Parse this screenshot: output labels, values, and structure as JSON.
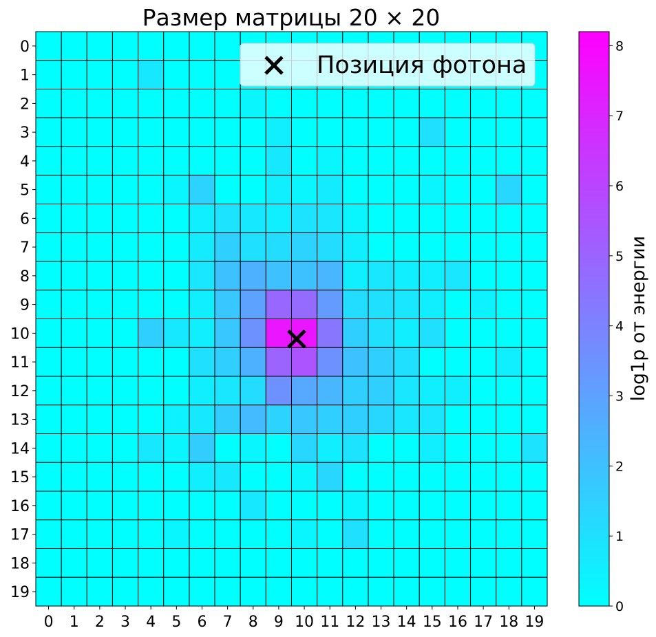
{
  "chart_data": {
    "type": "heatmap",
    "title": "Размер матрицы 20 × 20",
    "xlabel": "",
    "ylabel": "",
    "x_ticks": [
      "0",
      "1",
      "2",
      "3",
      "4",
      "5",
      "6",
      "7",
      "8",
      "9",
      "10",
      "11",
      "12",
      "13",
      "14",
      "15",
      "16",
      "17",
      "18",
      "19"
    ],
    "y_ticks": [
      "0",
      "1",
      "2",
      "3",
      "4",
      "5",
      "6",
      "7",
      "8",
      "9",
      "10",
      "11",
      "12",
      "13",
      "14",
      "15",
      "16",
      "17",
      "18",
      "19"
    ],
    "colormap": "cool",
    "colorbar": {
      "label": "log1p от энергии",
      "range": [
        0,
        8.2
      ],
      "ticks": [
        "0",
        "1",
        "2",
        "3",
        "4",
        "5",
        "6",
        "7",
        "8"
      ]
    },
    "grid": true,
    "legend": {
      "placement": "top-right",
      "label": "Позиция фотона"
    },
    "photon_position": {
      "x": 9.7,
      "y": 10.2
    },
    "colors": {
      "low": "#00ffff",
      "high": "#ff00ff",
      "marker": "#000000"
    },
    "values": [
      [
        0,
        0,
        0,
        0,
        0,
        0,
        0,
        0,
        0,
        0,
        0,
        0,
        0,
        0,
        0,
        0,
        0,
        0,
        0,
        0
      ],
      [
        0,
        0,
        0,
        0,
        0.7,
        0,
        0,
        0,
        0,
        0,
        0,
        0,
        0,
        0,
        0,
        0,
        0,
        0,
        0,
        0
      ],
      [
        0,
        0,
        0,
        0,
        0,
        0,
        0,
        0,
        0.3,
        0,
        0,
        0,
        0,
        0,
        0,
        0,
        0,
        0,
        0,
        0
      ],
      [
        0,
        0,
        0,
        0,
        0,
        0,
        0,
        0,
        0,
        0.5,
        0,
        0,
        0,
        0,
        0,
        1.0,
        0,
        0,
        0,
        0
      ],
      [
        0,
        0,
        0,
        0,
        0,
        0,
        0,
        0,
        0,
        0.7,
        0,
        0.3,
        0,
        0,
        0,
        0,
        0,
        0,
        0,
        0
      ],
      [
        0,
        0,
        0,
        0,
        0,
        0.3,
        1.4,
        0,
        0,
        0.5,
        0.3,
        0.6,
        0,
        0,
        0,
        0.3,
        0,
        0,
        1.3,
        0
      ],
      [
        0,
        0,
        0,
        0,
        0,
        0,
        0.5,
        0.9,
        0.7,
        0.5,
        0.9,
        0.8,
        0.3,
        0,
        0,
        0,
        0,
        0,
        0,
        0
      ],
      [
        0,
        0,
        0,
        0,
        0,
        0,
        0.6,
        1.5,
        1.0,
        1.1,
        1.4,
        1.1,
        0.5,
        0,
        0,
        0,
        0,
        0,
        0,
        0
      ],
      [
        0,
        0,
        0,
        0,
        0,
        0,
        0.8,
        2.0,
        2.5,
        2.0,
        2.0,
        2.3,
        0.5,
        0.8,
        0.5,
        0.5,
        0.8,
        0,
        0,
        0
      ],
      [
        0,
        0,
        0,
        0,
        0,
        0,
        0.5,
        1.8,
        3.0,
        4.9,
        4.8,
        3.2,
        1.1,
        1.0,
        0.8,
        0.5,
        0,
        0.4,
        0,
        0
      ],
      [
        0,
        0,
        0,
        0,
        1.5,
        0.7,
        0.5,
        1.8,
        3.5,
        7.5,
        7.5,
        4.4,
        1.5,
        1.0,
        0.5,
        1.0,
        0,
        0,
        0,
        0
      ],
      [
        0,
        0,
        0,
        0,
        0,
        0,
        1.0,
        1.5,
        2.5,
        5.0,
        5.5,
        3.5,
        2.0,
        1.5,
        1.0,
        0,
        0,
        0,
        0.5,
        0
      ],
      [
        0,
        0,
        0,
        0,
        0,
        0,
        0.5,
        0.8,
        1.1,
        3.5,
        2.8,
        2.3,
        1.5,
        1.5,
        0.8,
        0.5,
        0.5,
        0,
        0,
        0
      ],
      [
        0,
        0,
        0,
        0,
        0,
        0.4,
        0.7,
        1.6,
        2.2,
        1.4,
        1.8,
        1.5,
        1.5,
        1.3,
        0.8,
        0.8,
        0,
        0,
        0,
        0
      ],
      [
        0,
        0,
        0,
        0,
        0.7,
        0.3,
        1.6,
        0,
        0.3,
        0,
        1.3,
        0.5,
        0.9,
        0,
        0,
        0.5,
        0,
        0,
        0,
        0.9
      ],
      [
        0,
        0,
        0,
        0,
        0,
        0,
        0.5,
        0.7,
        0,
        0,
        0.3,
        1.3,
        0,
        0,
        0,
        0,
        0,
        0,
        0,
        0
      ],
      [
        0,
        0,
        0,
        0,
        0,
        0,
        0,
        0,
        0.7,
        0,
        0,
        0,
        0.3,
        0,
        0,
        0,
        0,
        0,
        0,
        0
      ],
      [
        0,
        0,
        0,
        0,
        0,
        0.3,
        0,
        0,
        0,
        0,
        0.3,
        0,
        1.0,
        0,
        0,
        0,
        0,
        0,
        0,
        0
      ],
      [
        0,
        0,
        0,
        0,
        0,
        0,
        0,
        0,
        0,
        0,
        0,
        0,
        0,
        0,
        0,
        0,
        0,
        0,
        0,
        0
      ],
      [
        0,
        0,
        0,
        0,
        0,
        0,
        0,
        0,
        0,
        0,
        0,
        0,
        0,
        0,
        0,
        0,
        0,
        0,
        0,
        0
      ]
    ]
  }
}
